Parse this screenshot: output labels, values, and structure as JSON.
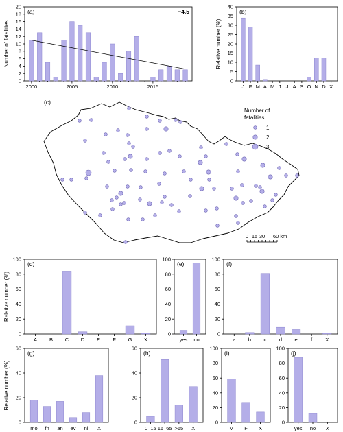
{
  "chart_data": [
    {
      "id": "a",
      "panel_label": "(a)",
      "type": "bar",
      "ylabel": "Number of fatalities",
      "ylim": [
        0,
        20
      ],
      "yticks": [
        0,
        2,
        4,
        6,
        8,
        10,
        12,
        14,
        16,
        18,
        20
      ],
      "x": [
        2000,
        2001,
        2002,
        2003,
        2004,
        2005,
        2006,
        2007,
        2008,
        2009,
        2010,
        2011,
        2012,
        2013,
        2014,
        2015,
        2016,
        2017,
        2018,
        2019
      ],
      "values": [
        11,
        13,
        5,
        1,
        11,
        16,
        15,
        13,
        1,
        5,
        10,
        2,
        8,
        12,
        0,
        1,
        3,
        4,
        3,
        3
      ],
      "xticks": [
        2000,
        2005,
        2010,
        2015
      ],
      "trend_start": 11.0,
      "trend_end": 3.2,
      "annotation": "−4.5"
    },
    {
      "id": "b",
      "panel_label": "(b)",
      "type": "bar",
      "ylabel": "Relative number (%)",
      "ylim": [
        0,
        40
      ],
      "yticks": [
        0,
        5,
        10,
        15,
        20,
        25,
        30,
        35,
        40
      ],
      "categories": [
        "J",
        "F",
        "M",
        "A",
        "M",
        "J",
        "J",
        "A",
        "S",
        "O",
        "N",
        "D",
        "X"
      ],
      "values": [
        34,
        29,
        8.5,
        0.8,
        0,
        0,
        0,
        0,
        0,
        2,
        12.5,
        12.5,
        0
      ]
    },
    {
      "id": "d",
      "panel_label": "(d)",
      "type": "bar",
      "ylabel": "Relative number (%)",
      "ylim": [
        0,
        100
      ],
      "yticks": [
        0,
        20,
        40,
        60,
        80,
        100
      ],
      "categories": [
        "A",
        "B",
        "C",
        "D",
        "E",
        "F",
        "G",
        "X"
      ],
      "values": [
        0,
        0,
        84,
        3,
        0,
        0,
        11,
        1
      ]
    },
    {
      "id": "e",
      "panel_label": "(e)",
      "type": "bar",
      "ylim": [
        0,
        100
      ],
      "yticks": [
        0,
        20,
        40,
        60,
        80,
        100
      ],
      "categories": [
        "yes",
        "no"
      ],
      "values": [
        5,
        95
      ]
    },
    {
      "id": "f",
      "panel_label": "(f)",
      "type": "bar",
      "ylim": [
        0,
        100
      ],
      "yticks": [
        0,
        20,
        40,
        60,
        80,
        100
      ],
      "categories": [
        "a",
        "b",
        "c",
        "d",
        "e",
        "f",
        "X"
      ],
      "values": [
        0,
        2,
        81,
        9,
        6,
        0,
        1
      ]
    },
    {
      "id": "g",
      "panel_label": "(g)",
      "type": "bar",
      "ylabel": "Relative number (%)",
      "ylim": [
        0,
        60
      ],
      "yticks": [
        0,
        20,
        40,
        60
      ],
      "categories": [
        "mo",
        "fn",
        "an",
        "ev",
        "ni",
        "X"
      ],
      "values": [
        18,
        13,
        17,
        4,
        8,
        38
      ]
    },
    {
      "id": "h",
      "panel_label": "(h)",
      "type": "bar",
      "ylim": [
        0,
        60
      ],
      "yticks": [
        0,
        20,
        40,
        60
      ],
      "categories": [
        "0–15",
        "16–65",
        ">65",
        "X"
      ],
      "values": [
        5,
        51,
        14,
        29
      ]
    },
    {
      "id": "i",
      "panel_label": "(i)",
      "type": "bar",
      "ylim": [
        0,
        100
      ],
      "yticks": [
        0,
        20,
        40,
        60,
        80,
        100
      ],
      "categories": [
        "M",
        "F",
        "X"
      ],
      "values": [
        59,
        27,
        14
      ]
    },
    {
      "id": "j",
      "panel_label": "(j)",
      "type": "bar",
      "ylim": [
        0,
        100
      ],
      "yticks": [
        0,
        20,
        40,
        60,
        80,
        100
      ],
      "categories": [
        "yes",
        "no",
        "X"
      ],
      "values": [
        88,
        12,
        0
      ]
    }
  ],
  "map": {
    "panel_label": "(c)",
    "legend_title_line1": "Number of",
    "legend_title_line2": "fatalities",
    "legend": [
      {
        "label": "1",
        "size": 1
      },
      {
        "label": "2",
        "size": 2
      },
      {
        "label": "3",
        "size": 3
      }
    ],
    "scalebar": {
      "ticks": [
        "0",
        "15",
        "30",
        "60 km"
      ]
    }
  },
  "colors": {
    "bar": "#b4aee8",
    "bar_edge": "#8d86cf",
    "dot": "#b4aee8",
    "dot_edge": "#6f68b4"
  }
}
